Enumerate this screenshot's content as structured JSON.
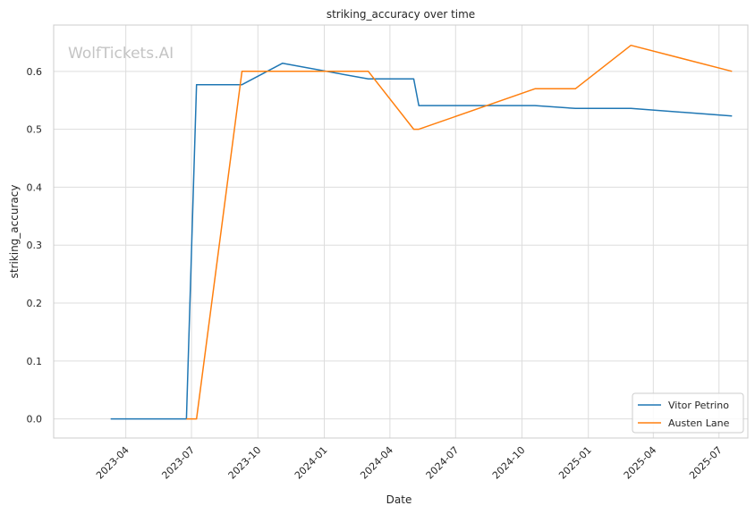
{
  "watermark": "WolfTickets.AI",
  "chart_data": {
    "type": "line",
    "title": "striking_accuracy over time",
    "xlabel": "Date",
    "ylabel": "striking_accuracy",
    "x_type": "date",
    "xlim": [
      "2022-12-22",
      "2025-08-10"
    ],
    "ylim": [
      -0.033,
      0.68
    ],
    "x_ticks": [
      "2023-04-01",
      "2023-07-01",
      "2023-10-01",
      "2024-01-01",
      "2024-04-01",
      "2024-07-01",
      "2024-10-01",
      "2025-01-01",
      "2025-04-01",
      "2025-07-01"
    ],
    "x_tick_labels": [
      "2023-04",
      "2023-07",
      "2023-10",
      "2024-01",
      "2024-04",
      "2024-07",
      "2024-10",
      "2025-01",
      "2025-04",
      "2025-07"
    ],
    "y_ticks": [
      0.0,
      0.1,
      0.2,
      0.3,
      0.4,
      0.5,
      0.6
    ],
    "y_tick_labels": [
      "0.0",
      "0.1",
      "0.2",
      "0.3",
      "0.4",
      "0.5",
      "0.6"
    ],
    "grid": true,
    "legend_position": "bottom-right",
    "series": [
      {
        "name": "Vitor Petrino",
        "color": "#1f77b4",
        "x": [
          "2023-03-11",
          "2023-06-24",
          "2023-07-08",
          "2023-09-09",
          "2023-11-04",
          "2024-03-02",
          "2024-05-04",
          "2024-05-11",
          "2024-10-19",
          "2024-12-14",
          "2025-03-01",
          "2025-07-19"
        ],
        "y": [
          0.0,
          0.0,
          0.577,
          0.577,
          0.614,
          0.587,
          0.587,
          0.541,
          0.541,
          0.536,
          0.536,
          0.523
        ]
      },
      {
        "name": "Austen Lane",
        "color": "#ff7f0e",
        "x": [
          "2023-06-24",
          "2023-07-08",
          "2023-09-09",
          "2024-03-02",
          "2024-05-04",
          "2024-05-11",
          "2024-10-19",
          "2024-12-14",
          "2025-03-01",
          "2025-07-19"
        ],
        "y": [
          0.0,
          0.0,
          0.6,
          0.6,
          0.5,
          0.5,
          0.57,
          0.57,
          0.645,
          0.6
        ]
      }
    ]
  }
}
